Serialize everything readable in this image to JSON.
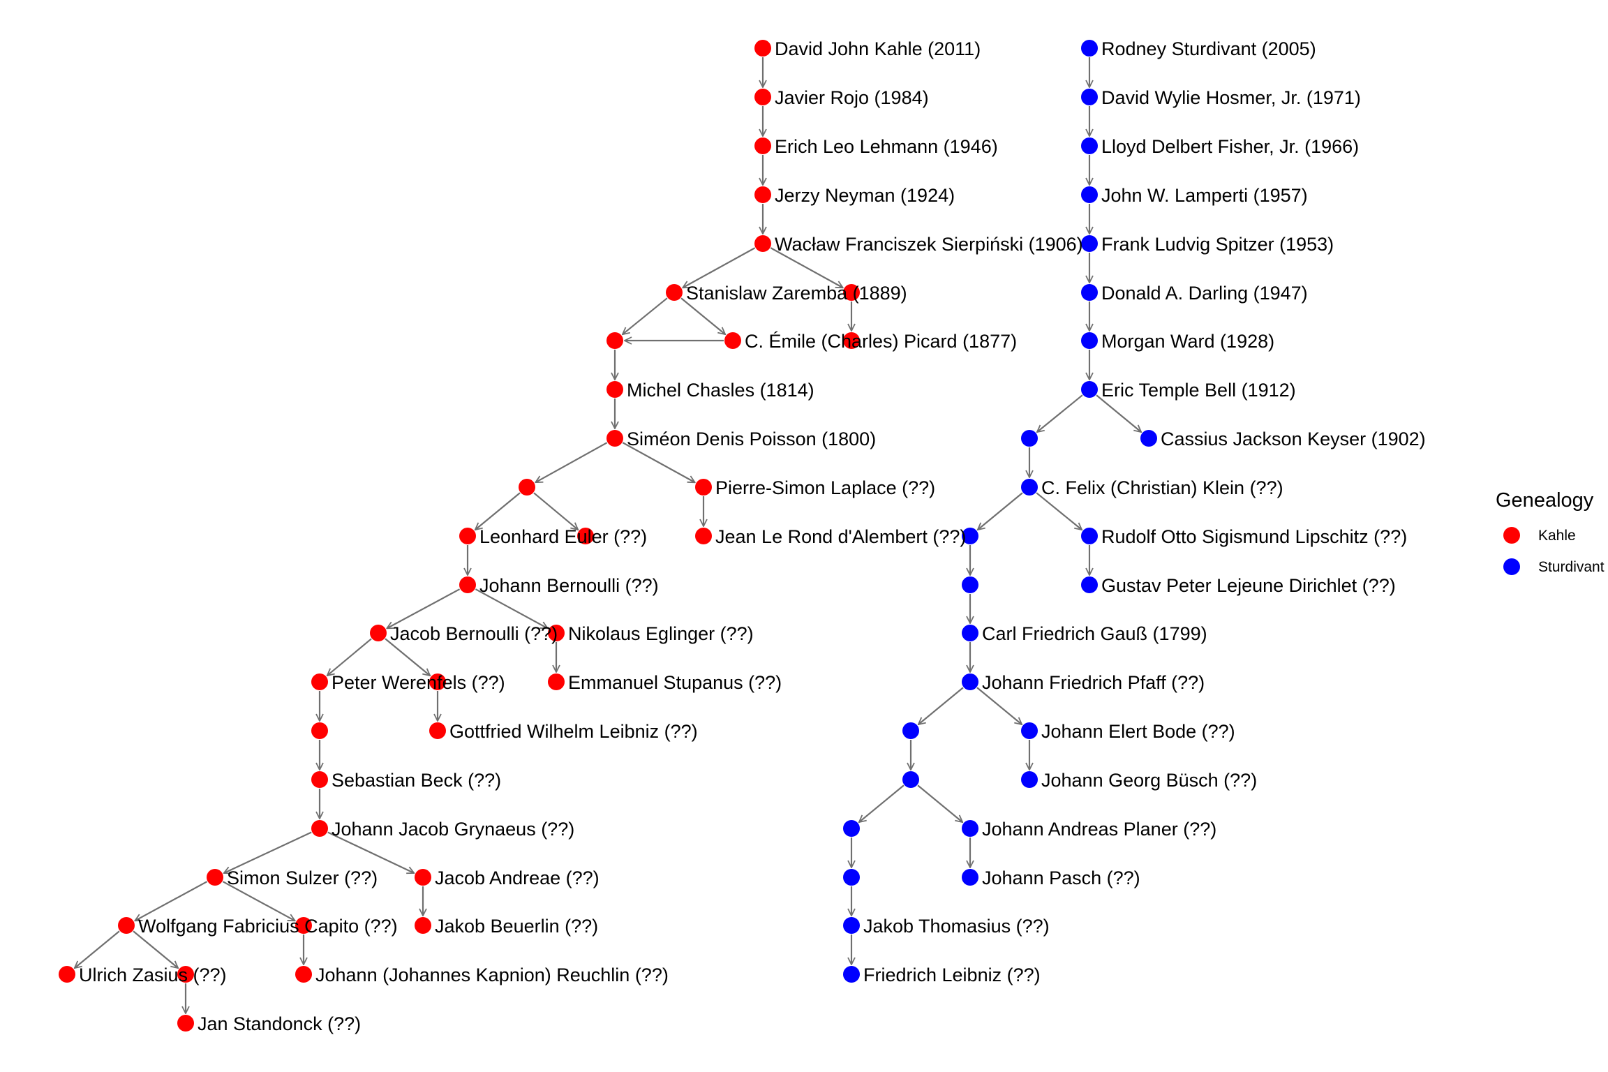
{
  "legend": {
    "title": "Genealogy",
    "items": [
      {
        "label": "Kahle",
        "color": "#ff0000"
      },
      {
        "label": "Sturdivant",
        "color": "#0000ff"
      }
    ]
  },
  "colors": {
    "kahle": "#ff0000",
    "sturdivant": "#0000ff",
    "edge": "#6f6f6f"
  },
  "nodes": [
    {
      "id": "k1",
      "group": "kahle",
      "label": "David John Kahle (2011)"
    },
    {
      "id": "k2",
      "group": "kahle",
      "label": "Javier Rojo (1984)"
    },
    {
      "id": "k3",
      "group": "kahle",
      "label": "Erich Leo Lehmann (1946)"
    },
    {
      "id": "k4",
      "group": "kahle",
      "label": "Jerzy Neyman (1924)"
    },
    {
      "id": "k5",
      "group": "kahle",
      "label": "Wacław Franciszek Sierpiński (1906)"
    },
    {
      "id": "k6",
      "group": "kahle",
      "label": "Stanislaw Zaremba (1889)"
    },
    {
      "id": "k7",
      "group": "kahle",
      "label": ""
    },
    {
      "id": "k8",
      "group": "kahle",
      "label": ""
    },
    {
      "id": "k9",
      "group": "kahle",
      "label": "C. Émile (Charles) Picard (1877)"
    },
    {
      "id": "k10",
      "group": "kahle",
      "label": ""
    },
    {
      "id": "k11",
      "group": "kahle",
      "label": "Michel Chasles (1814)"
    },
    {
      "id": "k12",
      "group": "kahle",
      "label": "Siméon Denis Poisson (1800)"
    },
    {
      "id": "k13",
      "group": "kahle",
      "label": ""
    },
    {
      "id": "k14",
      "group": "kahle",
      "label": "Pierre-Simon Laplace (??)"
    },
    {
      "id": "k15",
      "group": "kahle",
      "label": "Leonhard Euler (??)"
    },
    {
      "id": "k16",
      "group": "kahle",
      "label": ""
    },
    {
      "id": "k17",
      "group": "kahle",
      "label": "Jean Le Rond d'Alembert (??)"
    },
    {
      "id": "k18",
      "group": "kahle",
      "label": "Johann Bernoulli (??)"
    },
    {
      "id": "k19",
      "group": "kahle",
      "label": "Jacob Bernoulli (??)"
    },
    {
      "id": "k20",
      "group": "kahle",
      "label": "Nikolaus Eglinger (??)"
    },
    {
      "id": "k21",
      "group": "kahle",
      "label": "Peter Werenfels (??)"
    },
    {
      "id": "k22",
      "group": "kahle",
      "label": ""
    },
    {
      "id": "k23",
      "group": "kahle",
      "label": "Emmanuel Stupanus (??)"
    },
    {
      "id": "k24",
      "group": "kahle",
      "label": ""
    },
    {
      "id": "k25",
      "group": "kahle",
      "label": "Gottfried Wilhelm Leibniz (??)"
    },
    {
      "id": "k26",
      "group": "kahle",
      "label": "Sebastian Beck (??)"
    },
    {
      "id": "k27",
      "group": "kahle",
      "label": "Johann Jacob Grynaeus (??)"
    },
    {
      "id": "k28",
      "group": "kahle",
      "label": "Simon Sulzer (??)"
    },
    {
      "id": "k29",
      "group": "kahle",
      "label": "Jacob Andreae (??)"
    },
    {
      "id": "k30",
      "group": "kahle",
      "label": "Wolfgang Fabricius Capito (??)"
    },
    {
      "id": "k31",
      "group": "kahle",
      "label": ""
    },
    {
      "id": "k32",
      "group": "kahle",
      "label": "Jakob Beuerlin (??)"
    },
    {
      "id": "k33",
      "group": "kahle",
      "label": "Ulrich Zasius (??)"
    },
    {
      "id": "k34",
      "group": "kahle",
      "label": ""
    },
    {
      "id": "k35",
      "group": "kahle",
      "label": "Johann (Johannes Kapnion) Reuchlin (??)"
    },
    {
      "id": "k36",
      "group": "kahle",
      "label": "Jan Standonck (??)"
    },
    {
      "id": "s1",
      "group": "sturdivant",
      "label": "Rodney Sturdivant (2005)"
    },
    {
      "id": "s2",
      "group": "sturdivant",
      "label": "David Wylie Hosmer, Jr. (1971)"
    },
    {
      "id": "s3",
      "group": "sturdivant",
      "label": "Lloyd Delbert Fisher, Jr. (1966)"
    },
    {
      "id": "s4",
      "group": "sturdivant",
      "label": "John W. Lamperti (1957)"
    },
    {
      "id": "s5",
      "group": "sturdivant",
      "label": "Frank Ludvig Spitzer (1953)"
    },
    {
      "id": "s6",
      "group": "sturdivant",
      "label": "Donald A. Darling (1947)"
    },
    {
      "id": "s7",
      "group": "sturdivant",
      "label": "Morgan Ward (1928)"
    },
    {
      "id": "s8",
      "group": "sturdivant",
      "label": "Eric Temple Bell (1912)"
    },
    {
      "id": "s9",
      "group": "sturdivant",
      "label": ""
    },
    {
      "id": "s10",
      "group": "sturdivant",
      "label": "Cassius Jackson Keyser (1902)"
    },
    {
      "id": "s11",
      "group": "sturdivant",
      "label": "C. Felix (Christian) Klein (??)"
    },
    {
      "id": "s12",
      "group": "sturdivant",
      "label": ""
    },
    {
      "id": "s13",
      "group": "sturdivant",
      "label": "Rudolf Otto Sigismund Lipschitz (??)"
    },
    {
      "id": "s14",
      "group": "sturdivant",
      "label": ""
    },
    {
      "id": "s15",
      "group": "sturdivant",
      "label": "Gustav Peter Lejeune Dirichlet (??)"
    },
    {
      "id": "s16",
      "group": "sturdivant",
      "label": "Carl Friedrich Gauß (1799)"
    },
    {
      "id": "s17",
      "group": "sturdivant",
      "label": "Johann Friedrich Pfaff (??)"
    },
    {
      "id": "s18",
      "group": "sturdivant",
      "label": ""
    },
    {
      "id": "s19",
      "group": "sturdivant",
      "label": "Johann Elert Bode (??)"
    },
    {
      "id": "s20",
      "group": "sturdivant",
      "label": ""
    },
    {
      "id": "s21",
      "group": "sturdivant",
      "label": "Johann Georg Büsch (??)"
    },
    {
      "id": "s22",
      "group": "sturdivant",
      "label": ""
    },
    {
      "id": "s23",
      "group": "sturdivant",
      "label": "Johann Andreas Planer (??)"
    },
    {
      "id": "s24",
      "group": "sturdivant",
      "label": ""
    },
    {
      "id": "s25",
      "group": "sturdivant",
      "label": "Johann Pasch (??)"
    },
    {
      "id": "s26",
      "group": "sturdivant",
      "label": "Jakob Thomasius (??)"
    },
    {
      "id": "s27",
      "group": "sturdivant",
      "label": "Friedrich Leibniz (??)"
    }
  ],
  "edges": [
    [
      "k1",
      "k2"
    ],
    [
      "k2",
      "k3"
    ],
    [
      "k3",
      "k4"
    ],
    [
      "k4",
      "k5"
    ],
    [
      "k5",
      "k6"
    ],
    [
      "k5",
      "k7"
    ],
    [
      "k6",
      "k8"
    ],
    [
      "k6",
      "k9"
    ],
    [
      "k7",
      "k10"
    ],
    [
      "k9",
      "k8"
    ],
    [
      "k8",
      "k11"
    ],
    [
      "k11",
      "k12"
    ],
    [
      "k12",
      "k13"
    ],
    [
      "k12",
      "k14"
    ],
    [
      "k13",
      "k15"
    ],
    [
      "k13",
      "k16"
    ],
    [
      "k14",
      "k17"
    ],
    [
      "k15",
      "k18"
    ],
    [
      "k18",
      "k19"
    ],
    [
      "k18",
      "k20"
    ],
    [
      "k19",
      "k21"
    ],
    [
      "k19",
      "k22"
    ],
    [
      "k20",
      "k23"
    ],
    [
      "k21",
      "k24"
    ],
    [
      "k22",
      "k25"
    ],
    [
      "k24",
      "k26"
    ],
    [
      "k26",
      "k27"
    ],
    [
      "k27",
      "k28"
    ],
    [
      "k27",
      "k29"
    ],
    [
      "k28",
      "k30"
    ],
    [
      "k28",
      "k31"
    ],
    [
      "k29",
      "k32"
    ],
    [
      "k30",
      "k33"
    ],
    [
      "k30",
      "k34"
    ],
    [
      "k31",
      "k35"
    ],
    [
      "k34",
      "k36"
    ],
    [
      "s1",
      "s2"
    ],
    [
      "s2",
      "s3"
    ],
    [
      "s3",
      "s4"
    ],
    [
      "s4",
      "s5"
    ],
    [
      "s5",
      "s6"
    ],
    [
      "s6",
      "s7"
    ],
    [
      "s7",
      "s8"
    ],
    [
      "s8",
      "s9"
    ],
    [
      "s8",
      "s10"
    ],
    [
      "s9",
      "s11"
    ],
    [
      "s11",
      "s12"
    ],
    [
      "s11",
      "s13"
    ],
    [
      "s12",
      "s14"
    ],
    [
      "s13",
      "s15"
    ],
    [
      "s14",
      "s16"
    ],
    [
      "s16",
      "s17"
    ],
    [
      "s17",
      "s18"
    ],
    [
      "s17",
      "s19"
    ],
    [
      "s18",
      "s20"
    ],
    [
      "s19",
      "s21"
    ],
    [
      "s20",
      "s22"
    ],
    [
      "s20",
      "s23"
    ],
    [
      "s22",
      "s24"
    ],
    [
      "s23",
      "s25"
    ],
    [
      "s24",
      "s26"
    ],
    [
      "s26",
      "s27"
    ]
  ]
}
